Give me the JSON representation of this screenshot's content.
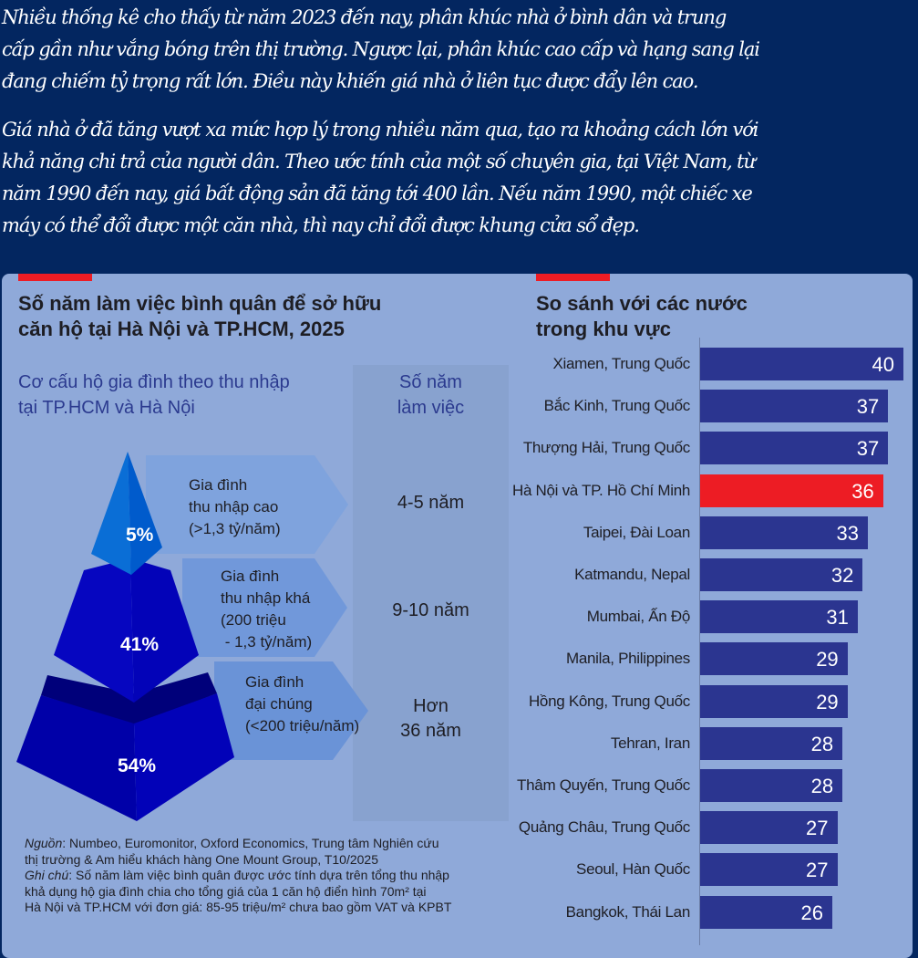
{
  "intro": {
    "paragraph1": [
      "Nhiều thống kê cho thấy từ năm 2023 đến nay, phân khúc nhà ở bình dân và trung",
      "cấp gần như vắng bóng trên thị trường. Ngược lại, phân khúc cao cấp và hạng sang lại",
      "đang chiếm tỷ trọng rất lớn. Điều này khiến giá nhà ở liên tục được đẩy lên cao."
    ],
    "paragraph2": [
      "Giá nhà ở đã tăng vượt xa mức hợp lý trong nhiều năm qua, tạo ra khoảng cách lớn với",
      "khả năng chi trả của người dân. Theo ước tính của một số chuyên gia, tại Việt Nam, từ",
      "năm 1990 đến nay, giá bất động sản đã tăng tới 400 lần. Nếu năm 1990, một chiếc xe",
      "máy có thể đổi được một căn nhà, thì nay chỉ đổi được khung cửa sổ đẹp."
    ]
  },
  "left": {
    "title": [
      "Số năm làm việc bình quân để sở hữu",
      "căn hộ tại Hà Nội và TP.HCM, 2025"
    ],
    "subtitle": [
      "Cơ cấu hộ gia đình theo thu nhập",
      "tại TP.HCM và Hà Nội"
    ],
    "years_header": [
      "Số năm",
      "làm việc"
    ],
    "tiers": [
      {
        "percent": "5%",
        "label": [
          "Gia đình",
          "thu nhập cao",
          "(>1,3 tỷ/năm)"
        ],
        "years": [
          "4-5 năm"
        ]
      },
      {
        "percent": "41%",
        "label": [
          "Gia đình",
          "thu nhập khá",
          "(200 triệu",
          " - 1,3 tỷ/năm)"
        ],
        "years": [
          "9-10 năm"
        ]
      },
      {
        "percent": "54%",
        "label": [
          "Gia đình",
          "đại chúng",
          "(<200 triệu/năm)"
        ],
        "years": [
          "Hơn",
          "36 năm"
        ]
      }
    ],
    "footnote": {
      "source_label": "Nguồn",
      "source_text": ": Numbeo, Euromonitor, Oxford Economics, Trung tâm Nghiên cứu",
      "source_text2": "thị trường & Am hiểu khách hàng One Mount Group, T10/2025",
      "note_label": "Ghi chú",
      "note_text": ": Số năm làm việc bình quân được ước tính dựa trên tổng thu nhập",
      "note_text2": "khả dụng hộ gia đình chia cho tổng giá của 1 căn hộ điển hình 70m² tại",
      "note_text3": "Hà Nội và TP.HCM với đơn giá: 85-95 triệu/m² chưa bao gồm VAT và KPBT"
    }
  },
  "chart_data": {
    "type": "bar",
    "orientation": "horizontal",
    "title": "So sánh với các nước trong khu vực",
    "title_lines": [
      "So sánh với các nước",
      "trong khu vực"
    ],
    "categories": [
      "Xiamen, Trung Quốc",
      "Bắc Kinh, Trung Quốc",
      "Thượng Hải, Trung Quốc",
      "Hà Nội và TP. Hồ Chí Minh",
      "Taipei, Đài Loan",
      "Katmandu, Nepal",
      "Mumbai, Ấn Độ",
      "Manila, Philippines",
      "Hồng Kông, Trung Quốc",
      "Tehran, Iran",
      "Thâm Quyến, Trung Quốc",
      "Quảng Châu, Trung Quốc",
      "Seoul, Hàn Quốc",
      "Bangkok, Thái Lan"
    ],
    "values": [
      40,
      37,
      37,
      36,
      33,
      32,
      31,
      29,
      29,
      28,
      28,
      27,
      27,
      26
    ],
    "highlight_index": 3,
    "xlim": [
      0,
      40
    ],
    "colors": {
      "bar": "#2b3590",
      "highlight": "#ed1c24"
    }
  }
}
